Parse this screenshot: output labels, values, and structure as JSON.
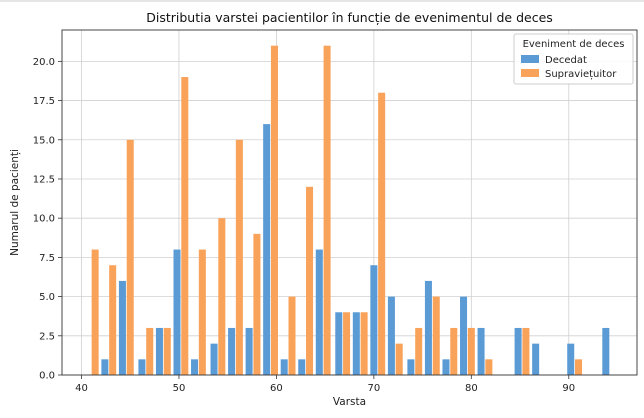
{
  "chart_data": {
    "type": "bar",
    "title": "Distributia varstei pacientilor în funcție de evenimentul de deces",
    "xlabel": "Varsta",
    "ylabel": "Numarul de pacienți",
    "xlim": [
      38,
      97
    ],
    "ylim": [
      0,
      22
    ],
    "xticks": [
      40,
      50,
      60,
      70,
      80,
      90
    ],
    "yticks": [
      0.0,
      2.5,
      5.0,
      7.5,
      10.0,
      12.5,
      15.0,
      17.5,
      20.0
    ],
    "grid": true,
    "legend": {
      "title": "Eveniment de deces",
      "position": "top-right"
    },
    "colors": {
      "Decedat": "#5b9bd5",
      "Supravietuitor": "#f9a259"
    },
    "series": [
      {
        "name": "Decedat",
        "x": [
          42.4,
          44.2,
          46.2,
          48.0,
          49.8,
          51.6,
          53.6,
          55.4,
          57.2,
          59.0,
          60.8,
          62.6,
          64.4,
          66.4,
          68.2,
          70.0,
          71.8,
          73.8,
          75.6,
          77.4,
          79.2,
          81.0,
          84.8,
          86.6,
          90.2,
          93.8
        ],
        "values": [
          1,
          6,
          1,
          3,
          8,
          1,
          2,
          3,
          3,
          16,
          1,
          1,
          8,
          4,
          4,
          7,
          5,
          1,
          6,
          1,
          5,
          3,
          3,
          2,
          2,
          3
        ]
      },
      {
        "name": "Supraviețuitor",
        "x": [
          41.4,
          43.2,
          45.0,
          47.0,
          48.8,
          50.6,
          52.4,
          54.4,
          56.2,
          58.0,
          59.8,
          61.6,
          63.4,
          65.2,
          67.2,
          69.0,
          70.8,
          72.6,
          74.6,
          76.4,
          78.2,
          80.0,
          81.8,
          85.6,
          91.0
        ],
        "values": [
          8,
          7,
          15,
          3,
          3,
          19,
          8,
          10,
          15,
          9,
          21,
          5,
          12,
          21,
          4,
          4,
          18,
          2,
          3,
          5,
          3,
          3,
          1,
          3,
          1
        ]
      }
    ]
  }
}
